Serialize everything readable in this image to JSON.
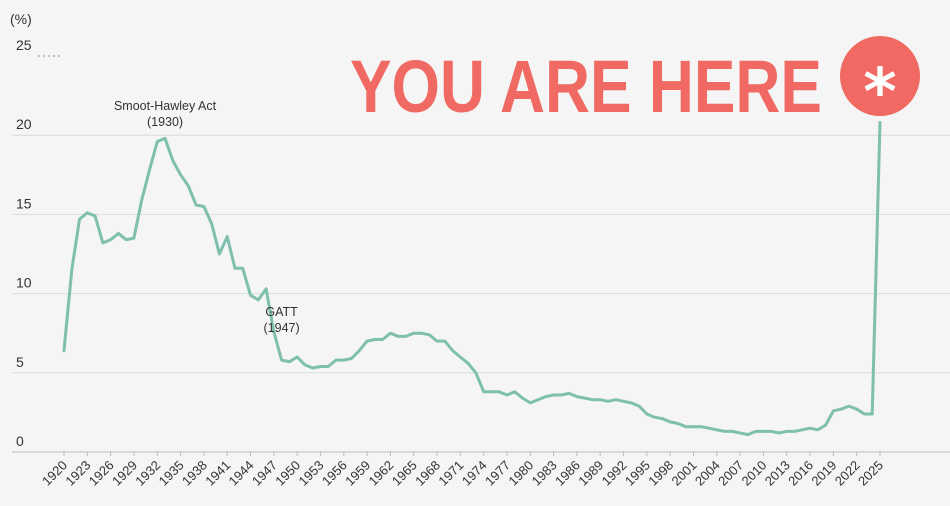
{
  "chart_data": {
    "type": "line",
    "ylabel": "(%)",
    "ylim": [
      0,
      25
    ],
    "y_ticks": [
      0,
      5,
      10,
      15,
      20,
      25
    ],
    "x_ticks": [
      "1920",
      "1923",
      "1926",
      "1929",
      "1932",
      "1935",
      "1938",
      "1941",
      "1944",
      "1947",
      "1950",
      "1953",
      "1956",
      "1959",
      "1962",
      "1965",
      "1968",
      "1971",
      "1974",
      "1977",
      "1980",
      "1983",
      "1986",
      "1989",
      "1992",
      "1995",
      "1998",
      "2001",
      "2004",
      "2007",
      "2010",
      "2013",
      "2016",
      "2019",
      "2022",
      "2025"
    ],
    "grid": "horizontal",
    "colors": {
      "line": "#7fbfae",
      "accent": "#f06a63",
      "grid": "#d9dcdb"
    },
    "series": [
      {
        "x": [
          1920,
          1921,
          1922,
          1923,
          1924,
          1925,
          1926,
          1927,
          1928,
          1929,
          1930,
          1931,
          1932,
          1933,
          1934,
          1935,
          1936,
          1937,
          1938,
          1939,
          1940,
          1941,
          1942,
          1943,
          1944,
          1945,
          1946,
          1947,
          1948,
          1949,
          1950,
          1951,
          1952,
          1953,
          1954,
          1955,
          1956,
          1957,
          1958,
          1959,
          1960,
          1961,
          1962,
          1963,
          1964,
          1965,
          1966,
          1967,
          1968,
          1969,
          1970,
          1971,
          1972,
          1973,
          1974,
          1975,
          1976,
          1977,
          1978,
          1979,
          1980,
          1981,
          1982,
          1983,
          1984,
          1985,
          1986,
          1987,
          1988,
          1989,
          1990,
          1991,
          1992,
          1993,
          1994,
          1995,
          1996,
          1997,
          1998,
          1999,
          2000,
          2001,
          2002,
          2003,
          2004,
          2005,
          2006,
          2007,
          2008,
          2009,
          2010,
          2011,
          2012,
          2013,
          2014,
          2015,
          2016,
          2017,
          2018,
          2019,
          2020,
          2021,
          2022,
          2023,
          2024,
          2025
        ],
        "values": [
          6.4,
          11.5,
          14.7,
          15.1,
          14.9,
          13.2,
          13.4,
          13.8,
          13.4,
          13.5,
          15.9,
          17.8,
          19.6,
          19.8,
          18.4,
          17.5,
          16.8,
          15.6,
          15.5,
          14.4,
          12.5,
          13.6,
          11.6,
          11.6,
          9.9,
          9.6,
          10.3,
          7.6,
          5.8,
          5.7,
          6.0,
          5.5,
          5.3,
          5.4,
          5.4,
          5.8,
          5.8,
          5.9,
          6.4,
          7.0,
          7.1,
          7.1,
          7.5,
          7.3,
          7.3,
          7.5,
          7.5,
          7.4,
          7.0,
          7.0,
          6.4,
          6.0,
          5.6,
          5.0,
          3.8,
          3.8,
          3.8,
          3.6,
          3.8,
          3.4,
          3.1,
          3.3,
          3.5,
          3.6,
          3.6,
          3.7,
          3.5,
          3.4,
          3.3,
          3.3,
          3.2,
          3.3,
          3.2,
          3.1,
          2.9,
          2.4,
          2.2,
          2.1,
          1.9,
          1.8,
          1.6,
          1.6,
          1.6,
          1.5,
          1.4,
          1.3,
          1.3,
          1.2,
          1.1,
          1.3,
          1.3,
          1.3,
          1.2,
          1.3,
          1.3,
          1.4,
          1.5,
          1.4,
          1.7,
          2.6,
          2.7,
          2.9,
          2.7,
          2.4,
          2.4,
          20.8
        ]
      }
    ],
    "annotations": [
      {
        "line1": "Smoot-Hawley Act",
        "line2": "(1930)",
        "x": 1933,
        "y": 21.6
      },
      {
        "line1": "GATT",
        "line2": "(1947)",
        "x": 1948,
        "y": 8.6
      }
    ]
  },
  "banner": {
    "text": "YOU ARE HERE",
    "symbol": "*"
  }
}
